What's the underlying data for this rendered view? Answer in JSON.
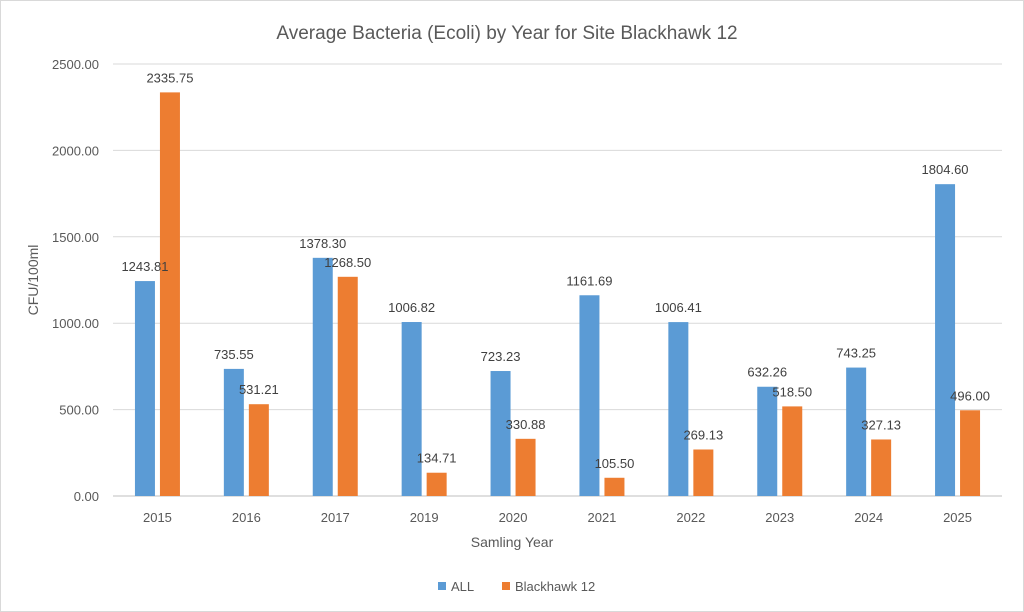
{
  "chart_data": {
    "type": "bar",
    "title": "Average Bacteria (Ecoli) by Year for Site Blackhawk 12",
    "xlabel": "Samling Year",
    "ylabel": "CFU/100ml",
    "ylim": [
      0,
      2500
    ],
    "yticks": [
      0,
      500,
      1000,
      1500,
      2000,
      2500
    ],
    "ytick_labels": [
      "0.00",
      "500.00",
      "1000.00",
      "1500.00",
      "2000.00",
      "2500.00"
    ],
    "grid": true,
    "legend": "bottom",
    "categories": [
      "2015",
      "2016",
      "2017",
      "2019",
      "2020",
      "2021",
      "2022",
      "2023",
      "2024",
      "2025"
    ],
    "series": [
      {
        "name": "ALL",
        "color": "#5b9bd5",
        "values": [
          1243.81,
          735.55,
          1378.3,
          1006.82,
          723.23,
          1161.69,
          1006.41,
          632.26,
          743.25,
          1804.6
        ],
        "labels": [
          "1243.81",
          "735.55",
          "1378.30",
          "1006.82",
          "723.23",
          "1161.69",
          "1006.41",
          "632.26",
          "743.25",
          "1804.60"
        ]
      },
      {
        "name": "Blackhawk 12",
        "color": "#ed7d31",
        "values": [
          2335.75,
          531.21,
          1268.5,
          134.71,
          330.88,
          105.5,
          269.13,
          518.5,
          327.13,
          496.0
        ],
        "labels": [
          "2335.75",
          "531.21",
          "1268.50",
          "134.71",
          "330.88",
          "105.50",
          "269.13",
          "518.50",
          "327.13",
          "496.00"
        ]
      }
    ]
  }
}
